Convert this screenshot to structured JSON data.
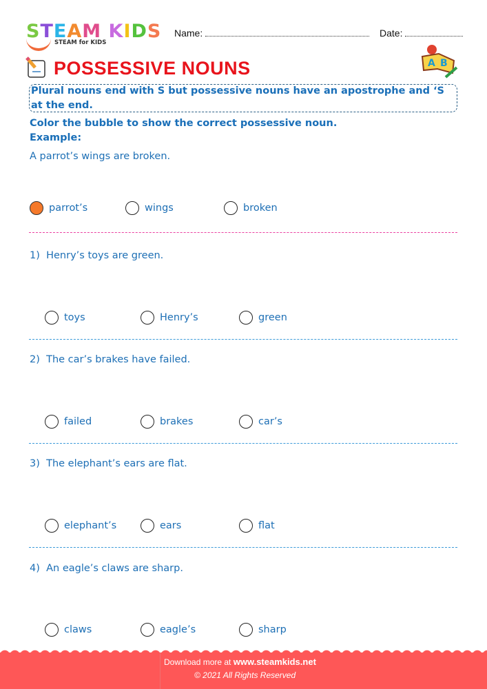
{
  "header": {
    "logo": "STEAM KIDS",
    "logo_tagline": "STEAM for KIDS",
    "name_label": "Name:",
    "date_label": "Date:"
  },
  "title": "POSSESSIVE NOUNS",
  "rule": "Plural nouns end with S but possessive nouns have an apostrophe and ‘S at the end.",
  "instruction": "Color the bubble to show the correct possessive noun.",
  "example_label": "Example:",
  "example": {
    "sentence": "A parrot’s wings are broken.",
    "options": [
      "parrot’s",
      "wings",
      "broken"
    ],
    "selected": 0
  },
  "questions": [
    {
      "number": "1)",
      "sentence": "Henry’s toys are green.",
      "options": [
        "toys",
        "Henry’s",
        "green"
      ]
    },
    {
      "number": "2)",
      "sentence": "The car’s brakes have failed.",
      "options": [
        "failed",
        "brakes",
        "car’s"
      ]
    },
    {
      "number": "3)",
      "sentence": "The elephant’s ears are flat.",
      "options": [
        "elephant’s",
        "ears",
        "flat"
      ]
    },
    {
      "number": "4)",
      "sentence": "An eagle’s claws are sharp.",
      "options": [
        "claws",
        "eagle’s",
        "sharp"
      ]
    }
  ],
  "footer": {
    "download_text": "Download more at",
    "url": "www.steamkids.net",
    "copyright": "©  2021 All Rights Reserved"
  },
  "colors": {
    "title": "#e8141c",
    "text": "#1d6fb5",
    "bubble_fill": "#f5792a",
    "footer": "#fe5757"
  }
}
